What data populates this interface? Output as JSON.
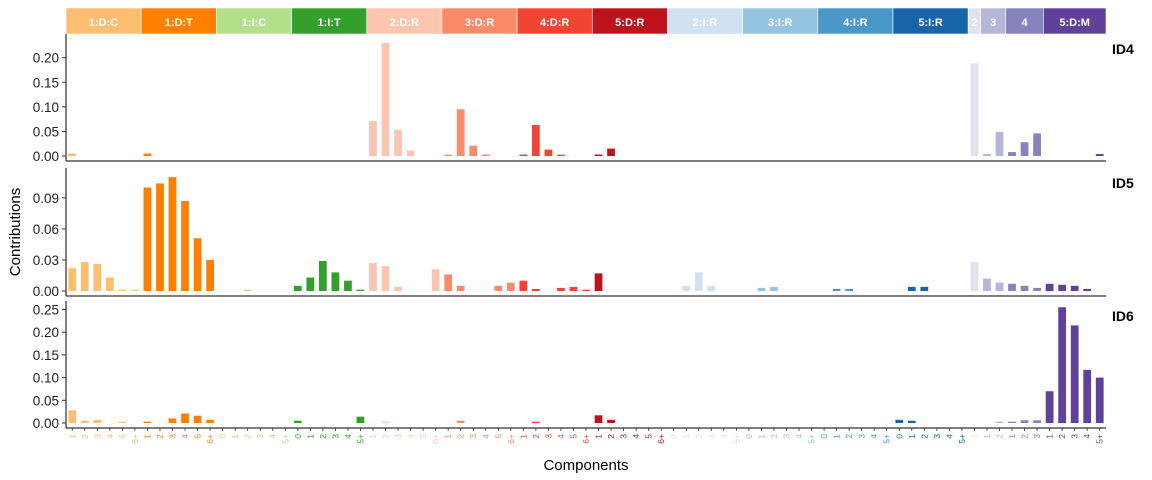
{
  "chart_data": {
    "type": "bar",
    "xlabel": "Components",
    "ylabel": "Contributions",
    "categories": [
      {
        "name": "1:D:C",
        "color": "#FDBE6F",
        "labels": [
          "1",
          "2",
          "3",
          "4",
          "5",
          "6+"
        ]
      },
      {
        "name": "1:D:T",
        "color": "#FF7F00",
        "labels": [
          "1",
          "2",
          "3",
          "4",
          "5",
          "6+"
        ]
      },
      {
        "name": "1:I:C",
        "color": "#B2DF8A",
        "labels": [
          "0",
          "1",
          "2",
          "3",
          "4",
          "5+"
        ]
      },
      {
        "name": "1:I:T",
        "color": "#33A02C",
        "labels": [
          "0",
          "1",
          "2",
          "3",
          "4",
          "5+"
        ]
      },
      {
        "name": "2:D:R",
        "color": "#FCC5B0",
        "labels": [
          "1",
          "2",
          "3",
          "4",
          "5",
          "6+"
        ]
      },
      {
        "name": "3:D:R",
        "color": "#FB8A6A",
        "labels": [
          "1",
          "2",
          "3",
          "4",
          "5",
          "6+"
        ]
      },
      {
        "name": "4:D:R",
        "color": "#F14432",
        "labels": [
          "1",
          "2",
          "3",
          "4",
          "5",
          "6+"
        ]
      },
      {
        "name": "5:D:R",
        "color": "#BC141A",
        "labels": [
          "1",
          "2",
          "3",
          "4",
          "5",
          "6+"
        ]
      },
      {
        "name": "2:I:R",
        "color": "#D0E1F2",
        "labels": [
          "0",
          "1",
          "2",
          "3",
          "4",
          "5+"
        ]
      },
      {
        "name": "3:I:R",
        "color": "#94C4DF",
        "labels": [
          "0",
          "1",
          "2",
          "3",
          "4",
          "5+"
        ]
      },
      {
        "name": "4:I:R",
        "color": "#4A98C9",
        "labels": [
          "0",
          "1",
          "2",
          "3",
          "4",
          "5+"
        ]
      },
      {
        "name": "5:I:R",
        "color": "#1764AB",
        "labels": [
          "0",
          "1",
          "2",
          "3",
          "4",
          "5+"
        ]
      },
      {
        "name": "2",
        "color": "#E2E2EF",
        "labels": [
          "1"
        ]
      },
      {
        "name": "3",
        "color": "#B6B6D8",
        "labels": [
          "1",
          "2"
        ]
      },
      {
        "name": "4",
        "color": "#8683BD",
        "labels": [
          "1",
          "2",
          "3"
        ]
      },
      {
        "name": "5:D:M",
        "color": "#61409B",
        "labels": [
          "1",
          "2",
          "3",
          "4",
          "5+"
        ]
      }
    ],
    "panels": [
      {
        "name": "ID4",
        "ylim": [
          0,
          0.24
        ],
        "yticks": [
          0,
          0.05,
          0.1,
          0.15,
          0.2
        ],
        "ytick_labels": [
          "0.00",
          "0.05",
          "0.10",
          "0.15",
          "0.20"
        ],
        "values": [
          [
            0.005,
            0,
            0,
            0,
            0,
            0
          ],
          [
            0.005,
            0,
            0,
            0,
            0,
            0
          ],
          [
            0,
            0,
            0,
            0,
            0,
            0
          ],
          [
            0,
            0,
            0,
            0,
            0,
            0
          ],
          [
            0.071,
            0.23,
            0.053,
            0.011,
            0,
            0
          ],
          [
            0.002,
            0.095,
            0.021,
            0.003,
            0,
            0
          ],
          [
            0.003,
            0.063,
            0.013,
            0.002,
            0,
            0
          ],
          [
            0.003,
            0.015,
            0,
            0,
            0,
            0
          ],
          [
            0,
            0,
            0,
            0,
            0,
            0
          ],
          [
            0,
            0,
            0,
            0,
            0,
            0
          ],
          [
            0,
            0,
            0,
            0,
            0,
            0
          ],
          [
            0,
            0,
            0,
            0,
            0,
            0
          ],
          [
            0.188
          ],
          [
            0.004,
            0.049
          ],
          [
            0.008,
            0.028,
            0.046
          ],
          [
            0,
            0,
            0,
            0,
            0.004
          ]
        ]
      },
      {
        "name": "ID5",
        "ylim": [
          0,
          0.115
        ],
        "yticks": [
          0,
          0.03,
          0.06,
          0.09
        ],
        "ytick_labels": [
          "0.00",
          "0.03",
          "0.06",
          "0.09"
        ],
        "values": [
          [
            0.022,
            0.028,
            0.026,
            0.013,
            0.001,
            0.001
          ],
          [
            0.1,
            0.104,
            0.11,
            0.087,
            0.051,
            0.03
          ],
          [
            0,
            0,
            0.001,
            0,
            0,
            0
          ],
          [
            0.005,
            0.013,
            0.029,
            0.018,
            0.01,
            0.001
          ],
          [
            0.027,
            0.024,
            0.004,
            0,
            0,
            0.021
          ],
          [
            0.016,
            0.005,
            0,
            0,
            0.005,
            0.008
          ],
          [
            0.01,
            0.002,
            0,
            0.003,
            0.004,
            0.001
          ],
          [
            0.017,
            0,
            0,
            0,
            0,
            0
          ],
          [
            0,
            0.005,
            0.018,
            0.005,
            0,
            0
          ],
          [
            0,
            0.003,
            0.004,
            0,
            0,
            0
          ],
          [
            0,
            0.002,
            0.002,
            0,
            0,
            0
          ],
          [
            0,
            0.004,
            0.004,
            0,
            0,
            0
          ],
          [
            0.028
          ],
          [
            0.012,
            0.008
          ],
          [
            0.007,
            0.005,
            0.003
          ],
          [
            0.007,
            0.006,
            0.005,
            0.002,
            0
          ]
        ]
      },
      {
        "name": "ID6",
        "ylim": [
          0,
          0.26
        ],
        "yticks": [
          0,
          0.05,
          0.1,
          0.15,
          0.2,
          0.25
        ],
        "ytick_labels": [
          "0.00",
          "0.05",
          "0.10",
          "0.15",
          "0.20",
          "0.25"
        ],
        "values": [
          [
            0.028,
            0.005,
            0.007,
            0,
            0.002,
            0
          ],
          [
            0.003,
            0,
            0.01,
            0.021,
            0.016,
            0.007
          ],
          [
            0,
            0,
            0,
            0,
            0,
            0
          ],
          [
            0.005,
            0,
            0,
            0,
            0,
            0.014
          ],
          [
            0,
            0.002,
            0,
            0,
            0,
            0
          ],
          [
            0,
            0.005,
            0,
            0,
            0,
            0
          ],
          [
            0,
            0.002,
            0,
            0,
            0,
            0
          ],
          [
            0.017,
            0.007,
            0,
            0,
            0,
            0
          ],
          [
            0,
            0,
            0,
            0,
            0,
            0
          ],
          [
            0,
            0,
            0,
            0,
            0,
            0
          ],
          [
            0,
            0,
            0,
            0,
            0,
            0
          ],
          [
            0.007,
            0.005,
            0,
            0,
            0,
            0
          ],
          [
            0
          ],
          [
            0,
            0.003
          ],
          [
            0.001,
            0.006,
            0.006
          ],
          [
            0.07,
            0.255,
            0.215,
            0.117,
            0.1
          ]
        ]
      }
    ]
  }
}
